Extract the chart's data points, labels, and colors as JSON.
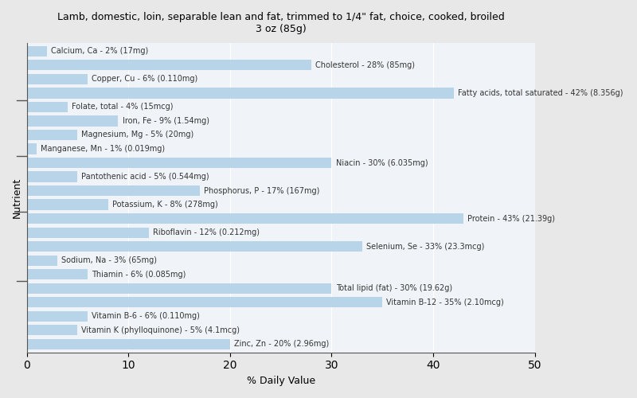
{
  "title": "Lamb, domestic, loin, separable lean and fat, trimmed to 1/4\" fat, choice, cooked, broiled\n3 oz (85g)",
  "xlabel": "% Daily Value",
  "ylabel": "Nutrient",
  "xlim": [
    0,
    50
  ],
  "xticks": [
    0,
    10,
    20,
    30,
    40,
    50
  ],
  "bar_color": "#b8d4e8",
  "background_color": "#e8e8e8",
  "plot_background": "#f0f4f8",
  "nutrients": [
    {
      "label": "Calcium, Ca - 2% (17mg)",
      "value": 2
    },
    {
      "label": "Cholesterol - 28% (85mg)",
      "value": 28
    },
    {
      "label": "Copper, Cu - 6% (0.110mg)",
      "value": 6
    },
    {
      "label": "Fatty acids, total saturated - 42% (8.356g)",
      "value": 42
    },
    {
      "label": "Folate, total - 4% (15mcg)",
      "value": 4
    },
    {
      "label": "Iron, Fe - 9% (1.54mg)",
      "value": 9
    },
    {
      "label": "Magnesium, Mg - 5% (20mg)",
      "value": 5
    },
    {
      "label": "Manganese, Mn - 1% (0.019mg)",
      "value": 1
    },
    {
      "label": "Niacin - 30% (6.035mg)",
      "value": 30
    },
    {
      "label": "Pantothenic acid - 5% (0.544mg)",
      "value": 5
    },
    {
      "label": "Phosphorus, P - 17% (167mg)",
      "value": 17
    },
    {
      "label": "Potassium, K - 8% (278mg)",
      "value": 8
    },
    {
      "label": "Protein - 43% (21.39g)",
      "value": 43
    },
    {
      "label": "Riboflavin - 12% (0.212mg)",
      "value": 12
    },
    {
      "label": "Selenium, Se - 33% (23.3mcg)",
      "value": 33
    },
    {
      "label": "Sodium, Na - 3% (65mg)",
      "value": 3
    },
    {
      "label": "Thiamin - 6% (0.085mg)",
      "value": 6
    },
    {
      "label": "Total lipid (fat) - 30% (19.62g)",
      "value": 30
    },
    {
      "label": "Vitamin B-12 - 35% (2.10mcg)",
      "value": 35
    },
    {
      "label": "Vitamin B-6 - 6% (0.110mg)",
      "value": 6
    },
    {
      "label": "Vitamin K (phylloquinone) - 5% (4.1mcg)",
      "value": 5
    },
    {
      "label": "Zinc, Zn - 20% (2.96mg)",
      "value": 20
    }
  ],
  "title_fontsize": 9,
  "label_fontsize": 7,
  "axis_fontsize": 9
}
